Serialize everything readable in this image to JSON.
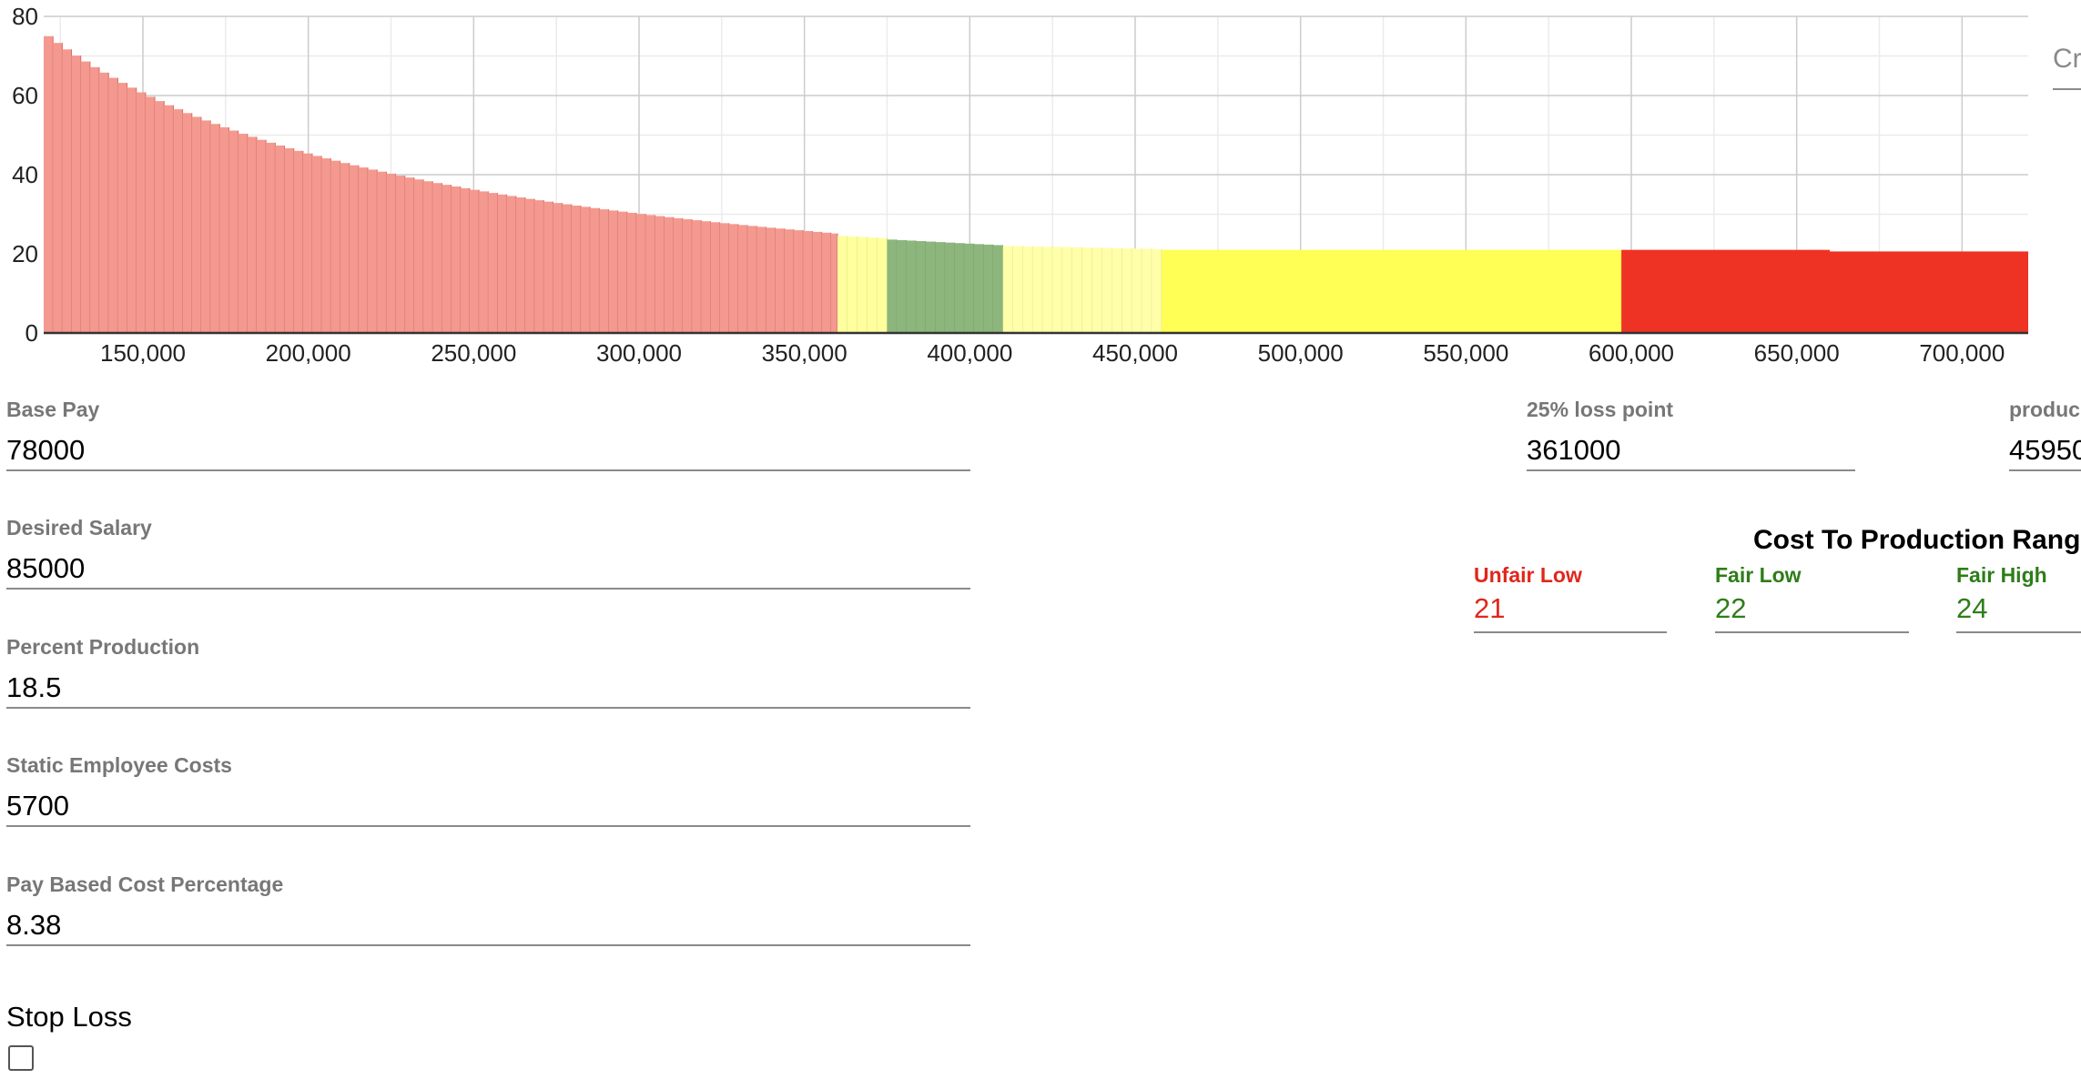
{
  "chart_data": {
    "type": "bar",
    "x_tick_labels": [
      "150,000",
      "200,000",
      "250,000",
      "300,000",
      "350,000",
      "400,000",
      "450,000",
      "500,000",
      "550,000",
      "600,000",
      "650,000",
      "700,000"
    ],
    "x_ticks": [
      150000,
      200000,
      250000,
      300000,
      350000,
      400000,
      450000,
      500000,
      550000,
      600000,
      650000,
      700000
    ],
    "y_tick_labels": [
      "0",
      "20",
      "40",
      "60",
      "80"
    ],
    "ylim": [
      0,
      80
    ],
    "xlim": [
      120000,
      720000
    ],
    "grid": true,
    "segments": [
      {
        "zone": "below 25% loss point",
        "x_start": 120000,
        "x_end": 360000,
        "value_formula": "9000000 / x",
        "color": "#f4998f"
      },
      {
        "zone": "pale yellow",
        "x_start": 360000,
        "x_end": 375000,
        "value_start": 24.5,
        "value_end": 24.0,
        "color": "#ffff9e"
      },
      {
        "zone": "fair range",
        "x_start": 375000,
        "x_end": 410000,
        "value_start": 23.6,
        "value_end": 22.2,
        "color": "#8db67d"
      },
      {
        "zone": "pale yellow",
        "x_start": 410000,
        "x_end": 458000,
        "value_start": 22.0,
        "value_end": 21.2,
        "color": "#ffffaa"
      },
      {
        "zone": "yellow",
        "x_start": 458000,
        "x_end": 597000,
        "value": 21,
        "color": "#ffff55"
      },
      {
        "zone": "red",
        "x_start": 597000,
        "x_end": 660000,
        "value": 21,
        "color": "#ee3224"
      },
      {
        "zone": "red",
        "x_start": 660000,
        "x_end": 720000,
        "value": 20.6,
        "color": "#ee3224"
      }
    ]
  },
  "fields": {
    "base_pay": {
      "label": "Base Pay",
      "value": "78000"
    },
    "desired_salary": {
      "label": "Desired Salary",
      "value": "85000"
    },
    "percent_production": {
      "label": "Percent Production",
      "value": "18.5"
    },
    "static_costs": {
      "label": "Static Employee Costs",
      "value": "5700"
    },
    "pay_based_cost": {
      "label": "Pay Based Cost Percentage",
      "value": "8.38"
    }
  },
  "stop_loss": {
    "label": "Stop Loss",
    "checked": false
  },
  "loss_point": {
    "label": "25% loss point",
    "value": "361000"
  },
  "production": {
    "label": "produc",
    "value": "45950"
  },
  "side_input": {
    "placeholder": "Cr"
  },
  "cost_to_production": {
    "title": "Cost To Production Range",
    "ranges": [
      {
        "label": "Unfair Low",
        "value": "21",
        "tone": "red"
      },
      {
        "label": "Fair Low",
        "value": "22",
        "tone": "green"
      },
      {
        "label": "Fair High",
        "value": "24",
        "tone": "green"
      }
    ]
  },
  "colors": {
    "grid": "#cccccc",
    "axis": "#333333",
    "label_red": "#e1261c",
    "label_green": "#2e7d18"
  }
}
